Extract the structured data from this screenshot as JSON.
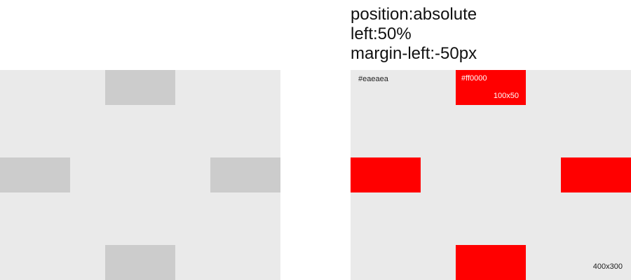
{
  "caption": {
    "lines": [
      "position:absolute",
      "left:50%",
      "margin-left:-50px"
    ]
  },
  "colors": {
    "panel_background": "#eaeaea",
    "placeholder_block": "#cccccc",
    "highlight_block": "#ff0000"
  },
  "labels": {
    "background_color": "#eaeaea",
    "block_color": "#ff0000",
    "block_size": "100x50",
    "panel_size": "400x300"
  }
}
